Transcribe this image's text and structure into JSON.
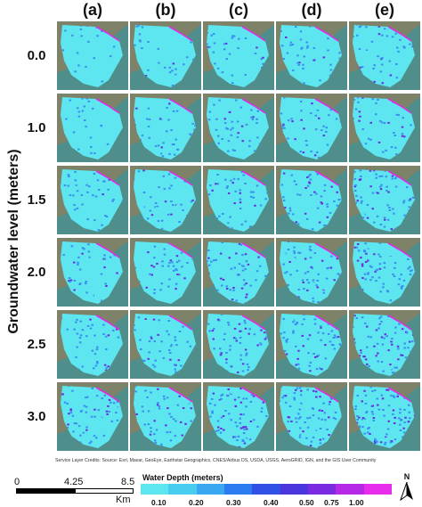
{
  "columns": [
    "(a)",
    "(b)",
    "(c)",
    "(d)",
    "(e)"
  ],
  "rows": [
    "0.0",
    "1.0",
    "1.5",
    "2.0",
    "2.5",
    "3.0"
  ],
  "y_axis_label": "Groundwater level (meters)",
  "credits": "Service Layer Credits: Source: Esri, Maxar, GeoEye, Earthstar Geographics, CNES/Airbus DS, USDA, USGS, AeroGRID, IGN, and the GIS User Community",
  "scale": {
    "tick0": "0",
    "tick1": "4.25",
    "tick2": "8.5",
    "unit": "Km"
  },
  "legend": {
    "title": "Water Depth (meters)",
    "ticks": [
      "0.10",
      "0.20",
      "0.30",
      "0.40",
      "0.50",
      "0.75",
      "1.00"
    ],
    "colors": [
      "#5ee6f0",
      "#48cdf0",
      "#3aa8f0",
      "#2a7cf0",
      "#3050e6",
      "#4a36dc",
      "#7a2ae0",
      "#b428e6",
      "#e82cec"
    ]
  },
  "north_label": "N",
  "map_colors": {
    "water": "#4f8e8a",
    "land": "#7d8268",
    "flood_light": "#5ee6f0",
    "flood_mid": "#3a8ef0",
    "flood_deep": "#6a2ee0",
    "flood_max": "#e22ce6"
  }
}
